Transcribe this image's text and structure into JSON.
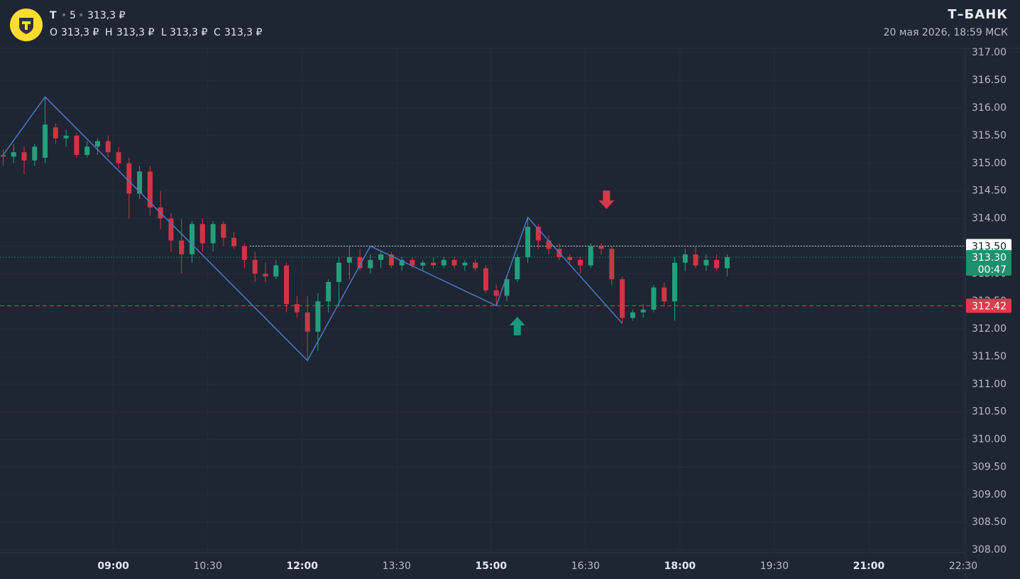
{
  "header": {
    "symbol": "T",
    "interval": "5",
    "price": "313,3 ₽",
    "ohlc": [
      {
        "key": "O",
        "value": "313,3 ₽"
      },
      {
        "key": "H",
        "value": "313,3 ₽"
      },
      {
        "key": "L",
        "value": "313,3 ₽"
      },
      {
        "key": "C",
        "value": "313,3 ₽"
      }
    ],
    "brand": "Т–БАНК",
    "timestamp": "20 мая 2026, 18:59 МСК"
  },
  "chart_data": {
    "type": "candlestick",
    "up_color": "#22a07c",
    "down_color": "#cf3545",
    "x": [
      "07:15",
      "07:25",
      "07:35",
      "07:45",
      "07:55",
      "08:05",
      "08:15",
      "08:25",
      "08:35",
      "08:45",
      "08:55",
      "09:05",
      "09:15",
      "09:25",
      "09:35",
      "09:45",
      "09:55",
      "10:05",
      "10:15",
      "10:25",
      "10:35",
      "10:45",
      "10:55",
      "11:05",
      "11:15",
      "11:25",
      "11:35",
      "11:45",
      "11:55",
      "12:05",
      "12:15",
      "12:25",
      "12:35",
      "12:45",
      "12:55",
      "13:05",
      "13:15",
      "13:25",
      "13:35",
      "13:45",
      "13:55",
      "14:05",
      "14:15",
      "14:25",
      "14:35",
      "14:45",
      "14:55",
      "15:05",
      "15:15",
      "15:25",
      "15:35",
      "15:45",
      "15:55",
      "16:05",
      "16:15",
      "16:25",
      "16:35",
      "16:45",
      "16:55",
      "17:05",
      "17:15",
      "17:25",
      "17:35",
      "17:45",
      "17:55",
      "18:05",
      "18:15",
      "18:25",
      "18:35",
      "18:45"
    ],
    "open": [
      315.15,
      315.12,
      315.2,
      315.05,
      315.1,
      315.65,
      315.45,
      315.5,
      315.15,
      315.3,
      315.4,
      315.2,
      315.0,
      314.45,
      314.85,
      314.2,
      314.0,
      313.6,
      313.35,
      313.9,
      313.55,
      313.9,
      313.65,
      313.5,
      313.25,
      313.0,
      312.95,
      313.15,
      312.45,
      312.3,
      311.95,
      312.5,
      312.85,
      313.2,
      313.3,
      313.1,
      313.25,
      313.35,
      313.15,
      313.25,
      313.15,
      313.2,
      313.15,
      313.25,
      313.15,
      313.2,
      313.1,
      312.7,
      312.6,
      312.9,
      313.3,
      313.85,
      313.6,
      313.45,
      313.3,
      313.25,
      313.15,
      313.5,
      313.45,
      312.9,
      312.2,
      312.3,
      312.35,
      312.75,
      312.5,
      313.2,
      313.35,
      313.15,
      313.25,
      313.1
    ],
    "high": [
      315.25,
      315.35,
      315.3,
      315.35,
      316.2,
      315.72,
      315.6,
      315.55,
      315.4,
      315.45,
      315.5,
      315.3,
      315.1,
      314.95,
      314.95,
      314.5,
      314.1,
      314.0,
      313.95,
      314.0,
      313.95,
      313.95,
      313.75,
      313.55,
      313.4,
      313.2,
      313.25,
      313.2,
      312.6,
      312.6,
      312.65,
      312.9,
      313.3,
      313.5,
      313.45,
      313.35,
      313.4,
      313.4,
      313.3,
      313.3,
      313.25,
      313.3,
      313.3,
      313.3,
      313.25,
      313.25,
      313.15,
      312.8,
      312.95,
      313.35,
      314.02,
      313.9,
      313.7,
      313.55,
      313.35,
      313.3,
      313.55,
      313.55,
      313.5,
      312.95,
      312.35,
      312.45,
      312.8,
      312.85,
      313.3,
      313.45,
      313.5,
      313.35,
      313.35,
      313.35
    ],
    "low": [
      314.95,
      315.0,
      314.8,
      314.95,
      315.0,
      315.35,
      315.3,
      315.1,
      315.1,
      315.15,
      315.1,
      314.9,
      314.0,
      314.35,
      314.05,
      313.8,
      313.4,
      313.0,
      313.2,
      313.4,
      313.4,
      313.5,
      313.45,
      313.1,
      312.85,
      312.85,
      312.9,
      312.3,
      312.2,
      311.43,
      311.6,
      312.3,
      312.4,
      312.9,
      313.05,
      313.0,
      313.1,
      313.1,
      313.05,
      313.1,
      313.05,
      313.1,
      313.1,
      313.1,
      313.05,
      313.05,
      312.65,
      312.42,
      312.5,
      312.85,
      313.2,
      313.45,
      313.35,
      313.25,
      313.15,
      313.0,
      313.1,
      313.35,
      312.8,
      312.1,
      312.15,
      312.2,
      312.3,
      312.4,
      312.15,
      313.05,
      313.1,
      313.05,
      313.05,
      312.95
    ],
    "close": [
      315.12,
      315.2,
      315.05,
      315.3,
      315.7,
      315.45,
      315.5,
      315.15,
      315.3,
      315.4,
      315.2,
      315.0,
      314.45,
      314.85,
      314.2,
      314.0,
      313.6,
      313.35,
      313.9,
      313.55,
      313.9,
      313.65,
      313.5,
      313.25,
      313.0,
      312.95,
      313.15,
      312.45,
      312.3,
      311.95,
      312.5,
      312.85,
      313.2,
      313.3,
      313.1,
      313.25,
      313.35,
      313.15,
      313.25,
      313.15,
      313.2,
      313.15,
      313.25,
      313.15,
      313.2,
      313.1,
      312.7,
      312.6,
      312.9,
      313.3,
      313.85,
      313.6,
      313.45,
      313.3,
      313.25,
      313.15,
      313.5,
      313.45,
      312.9,
      312.2,
      312.3,
      312.35,
      312.75,
      312.5,
      313.2,
      313.35,
      313.15,
      313.25,
      313.1,
      313.3
    ],
    "zigzag": {
      "color": "#4a78c2",
      "x": [
        "07:15",
        "07:55",
        "12:05",
        "13:05",
        "15:05",
        "15:35",
        "17:05"
      ],
      "values": [
        315.15,
        316.2,
        311.43,
        313.5,
        312.42,
        314.02,
        312.1
      ]
    },
    "levels": [
      {
        "value": 313.5,
        "label": "313.50",
        "color": "#d0d3da",
        "start": "11:10"
      },
      {
        "value": 313.3,
        "label": "313.30",
        "countdown": "00:47",
        "color": "#1f8f6c"
      },
      {
        "value": 312.42,
        "label": "312.42",
        "color": "#e03a4c"
      }
    ],
    "signals": [
      {
        "x": "15:25",
        "price": 312.04,
        "direction": "up",
        "color": "#169a7e"
      },
      {
        "x": "16:50",
        "price": 314.35,
        "direction": "down",
        "color": "#d9374a"
      }
    ],
    "xlim": [
      "07:12",
      "22:32"
    ],
    "xticks": [
      "09:00",
      "10:30",
      "12:00",
      "13:30",
      "15:00",
      "16:30",
      "18:00",
      "19:30",
      "21:00",
      "22:30"
    ],
    "ylim": [
      307.95,
      317.08
    ],
    "yticks": [
      {
        "value": 308,
        "label": "308.00"
      },
      {
        "value": 308.5,
        "label": "308.50"
      },
      {
        "value": 309,
        "label": "309.00"
      },
      {
        "value": 309.5,
        "label": "309.50"
      },
      {
        "value": 310,
        "label": "310.00"
      },
      {
        "value": 310.5,
        "label": "310.50"
      },
      {
        "value": 311,
        "label": "311.00"
      },
      {
        "value": 311.5,
        "label": "311.50"
      },
      {
        "value": 312,
        "label": "312.00"
      },
      {
        "value": 312.5,
        "label": "312.50"
      },
      {
        "value": 313,
        "label": "313.00"
      },
      {
        "value": 313.5,
        "label": "313.50"
      },
      {
        "value": 314,
        "label": "314.00"
      },
      {
        "value": 314.5,
        "label": "314.50"
      },
      {
        "value": 315,
        "label": "315.00"
      },
      {
        "value": 315.5,
        "label": "315.50"
      },
      {
        "value": 316,
        "label": "316.00"
      },
      {
        "value": 316.5,
        "label": "316.50"
      },
      {
        "value": 317,
        "label": "317.00"
      }
    ],
    "grid": true
  }
}
